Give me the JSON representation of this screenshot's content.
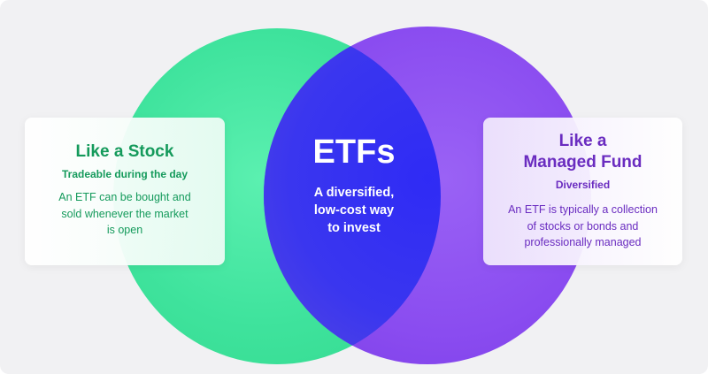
{
  "colors": {
    "background": "#f1f1f3",
    "stock_green": "#3fe39d",
    "fund_purple": "#8a4cf0",
    "overlap_blue": "#3a32f0",
    "stock_text": "#149a5b",
    "fund_text": "#6a2cc0"
  },
  "center": {
    "title": "ETFs",
    "description_lines": [
      "A diversified,",
      "low-cost way",
      "to invest"
    ]
  },
  "left_card": {
    "title_lines": [
      "Like a Stock"
    ],
    "subtitle": "Tradeable during the day",
    "description_lines": [
      "An ETF can be bought and",
      "sold whenever the market",
      "is open"
    ]
  },
  "right_card": {
    "title_lines": [
      "Like a",
      "Managed Fund"
    ],
    "subtitle": "Diversified",
    "description_lines": [
      "An ETF is typically a collection",
      "of stocks or bonds and",
      "professionally managed"
    ]
  }
}
